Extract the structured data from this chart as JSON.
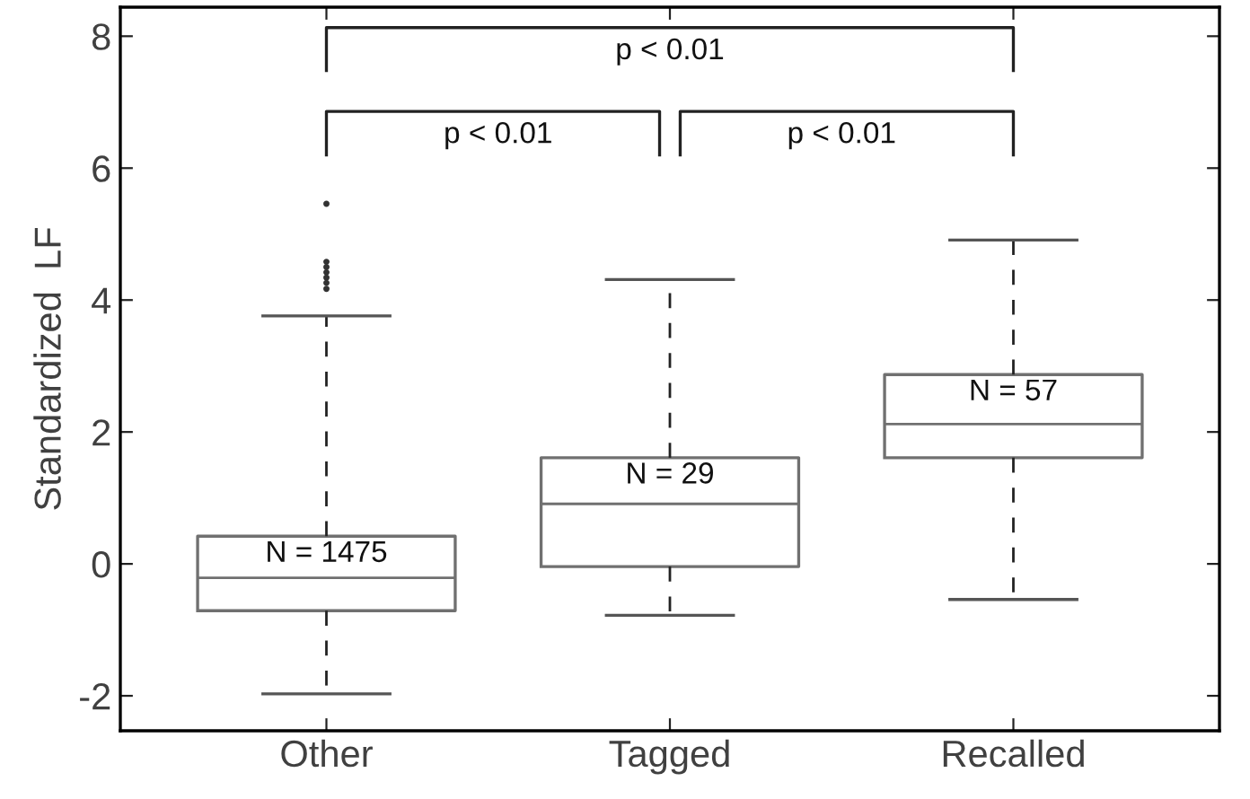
{
  "chart_data": {
    "type": "box",
    "ylabel": "Standardized  LF",
    "categories": [
      "Other",
      "Tagged",
      "Recalled"
    ],
    "boxes": [
      {
        "low": -1.97,
        "q1": -0.71,
        "median": -0.21,
        "q3": 0.42,
        "high": 3.76,
        "outliers": [
          5.46,
          4.58,
          4.5,
          4.42,
          4.34,
          4.26,
          4.17
        ]
      },
      {
        "low": -0.78,
        "q1": -0.04,
        "median": 0.91,
        "q3": 1.61,
        "high": 4.31
      },
      {
        "low": -0.54,
        "q1": 1.61,
        "median": 2.12,
        "q3": 2.87,
        "high": 4.91
      }
    ],
    "ylim": [
      -2.53,
      8.44
    ],
    "yticks": [
      -2,
      0,
      2,
      4,
      6,
      8
    ],
    "grid": false,
    "legend": false,
    "annotations": [
      "N = 1475",
      "N = 29",
      "N = 57",
      "p < 0.01",
      "p < 0.01",
      "p < 0.01"
    ]
  }
}
